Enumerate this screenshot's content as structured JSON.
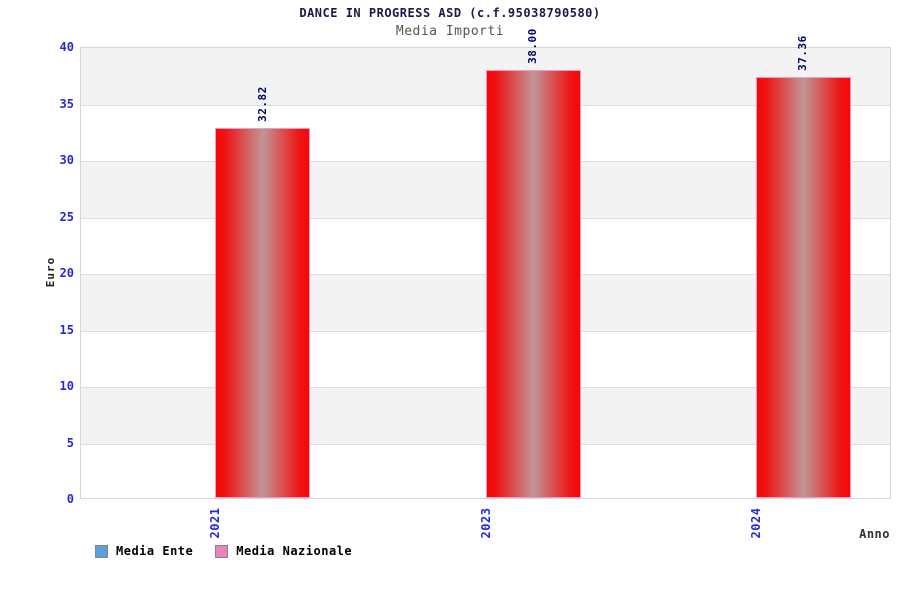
{
  "header": {
    "title": "DANCE IN PROGRESS ASD (c.f.95038790580)",
    "subtitle": "Media Importi"
  },
  "chart_data": {
    "type": "bar",
    "categories": [
      "2021",
      "2023",
      "2024"
    ],
    "series": [
      {
        "name": "Media Ente",
        "color": "#5a9fe0",
        "values": []
      },
      {
        "name": "Media Nazionale",
        "color": "#ec82b9",
        "values": [
          32.82,
          38.0,
          37.36
        ]
      }
    ],
    "value_labels": [
      "32.82",
      "38.00",
      "37.36"
    ],
    "title": "DANCE IN PROGRESS ASD (c.f.95038790580)",
    "subtitle": "Media Importi",
    "xlabel": "Anno",
    "ylabel": "Euro",
    "ylim": [
      0,
      40
    ],
    "yticks": [
      0,
      5,
      10,
      15,
      20,
      25,
      30,
      35,
      40
    ],
    "grid": true,
    "band_fill": "alternating",
    "legend_position": "bottom-left",
    "bar_style": "red-cylinder-gradient"
  },
  "legend": {
    "items": [
      {
        "label": "Media Ente",
        "color": "#5a9fe0"
      },
      {
        "label": "Media Nazionale",
        "color": "#ec82b9"
      }
    ]
  },
  "colors": {
    "tick_label": "#2727dd",
    "value_label": "#00006e",
    "title": "#1a1a4a",
    "subtitle": "#555555",
    "band": "#f3f3f3",
    "grid_line": "#dedede",
    "plot_border": "#d6d6d6",
    "bar_edge": "#f09aca",
    "bar_red": "#f80606",
    "bar_center": "#c29595",
    "legend_marker_border": "#848484"
  }
}
